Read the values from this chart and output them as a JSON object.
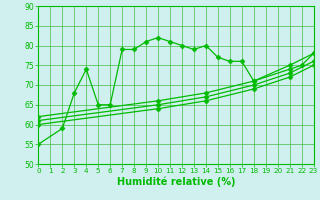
{
  "line1_x": [
    0,
    2,
    3,
    4,
    5,
    6,
    7,
    8,
    9,
    10,
    11,
    12,
    13,
    14,
    15,
    16,
    17,
    18,
    21,
    22,
    23
  ],
  "line1_y": [
    55,
    59,
    68,
    74,
    65,
    65,
    79,
    79,
    81,
    82,
    81,
    80,
    79,
    80,
    77,
    76,
    76,
    71,
    74,
    75,
    78
  ],
  "line2_x": [
    0,
    10,
    14,
    18,
    21,
    23
  ],
  "line2_y": [
    62,
    66,
    68,
    71,
    75,
    78
  ],
  "line3_x": [
    0,
    10,
    14,
    18,
    21,
    23
  ],
  "line3_y": [
    61,
    65,
    67,
    70,
    73,
    76
  ],
  "line4_x": [
    0,
    10,
    14,
    18,
    21,
    23
  ],
  "line4_y": [
    60,
    64,
    66,
    69,
    72,
    75
  ],
  "color": "#00bb00",
  "bg_color": "#d0f0f0",
  "grid_color": "#44bb44",
  "xlabel": "Humidité relative (%)",
  "xlim": [
    0,
    23
  ],
  "ylim": [
    50,
    90
  ],
  "yticks": [
    50,
    55,
    60,
    65,
    70,
    75,
    80,
    85,
    90
  ],
  "xticks": [
    0,
    1,
    2,
    3,
    4,
    5,
    6,
    7,
    8,
    9,
    10,
    11,
    12,
    13,
    14,
    15,
    16,
    17,
    18,
    19,
    20,
    21,
    22,
    23
  ]
}
